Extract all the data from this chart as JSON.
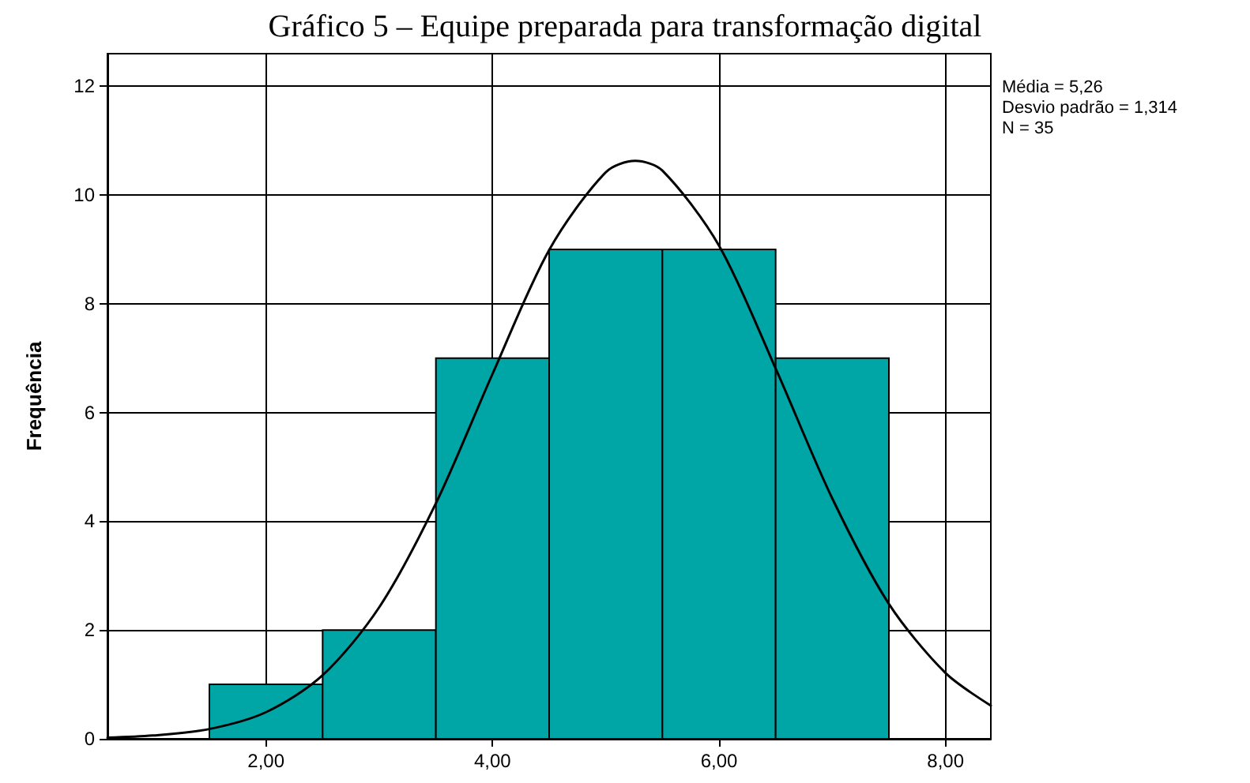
{
  "chart_data": {
    "type": "histogram",
    "title": "Gráfico 5 – Equipe preparada para transformação digital",
    "ylabel": "Frequência",
    "series": [
      {
        "type": "histogram",
        "color": "#00a6a6",
        "bins": [
          1.5,
          2.5,
          3.5,
          4.5,
          5.5,
          6.5,
          7.5
        ],
        "values": [
          1,
          2,
          7,
          9,
          9,
          7
        ]
      },
      {
        "type": "line",
        "color": "#000000",
        "x": [
          0.6,
          1.0,
          1.5,
          2.0,
          2.5,
          3.0,
          3.5,
          4.0,
          4.5,
          5.0,
          5.26,
          5.5,
          6.0,
          6.5,
          7.0,
          7.5,
          8.0,
          8.4
        ],
        "values": [
          0.02,
          0.06,
          0.18,
          0.49,
          1.17,
          2.42,
          4.33,
          6.71,
          8.99,
          10.42,
          10.63,
          10.45,
          9.07,
          6.81,
          4.42,
          2.48,
          1.21,
          0.61
        ]
      }
    ],
    "xlim": [
      0.6,
      8.4
    ],
    "xticks": [
      {
        "value": 2,
        "label": "2,00"
      },
      {
        "value": 4,
        "label": "4,00"
      },
      {
        "value": 6,
        "label": "6,00"
      },
      {
        "value": 8,
        "label": "8,00"
      }
    ],
    "ylim": [
      0,
      12.6
    ],
    "yticks": [
      0,
      2,
      4,
      6,
      8,
      10,
      12
    ],
    "grid": true,
    "marker": "none",
    "line_style": "solid",
    "annotations": [
      "Média = 5,26",
      "Desvio padrão = 1,314",
      "N = 35"
    ]
  }
}
